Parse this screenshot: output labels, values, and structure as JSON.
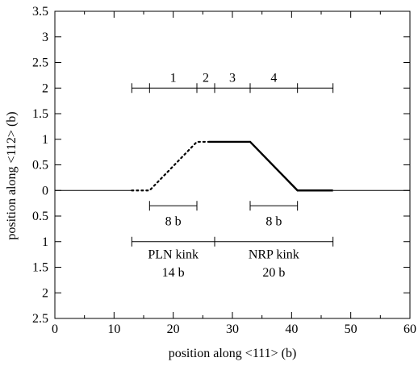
{
  "chart_data": {
    "type": "line",
    "xlabel": "position along <111> (b)",
    "ylabel": "position along <112> (b)",
    "xlim": [
      0,
      60
    ],
    "ylim": [
      -2.5,
      3.5
    ],
    "grid": false,
    "x_ticks": [
      {
        "v": 0,
        "label": "0"
      },
      {
        "v": 10,
        "label": "10"
      },
      {
        "v": 20,
        "label": "20"
      },
      {
        "v": 30,
        "label": "30"
      },
      {
        "v": 40,
        "label": "40"
      },
      {
        "v": 50,
        "label": "50"
      },
      {
        "v": 60,
        "label": "60"
      }
    ],
    "x_minor_step": 5,
    "y_ticks": [
      {
        "v": 3.5,
        "label": "3.5"
      },
      {
        "v": 3,
        "label": "3"
      },
      {
        "v": 2.5,
        "label": "2.5"
      },
      {
        "v": 2,
        "label": "2"
      },
      {
        "v": 1.5,
        "label": "1.5"
      },
      {
        "v": 1,
        "label": "1"
      },
      {
        "v": 0.5,
        "label": "0.5"
      },
      {
        "v": 0,
        "label": "0"
      },
      {
        "v": -0.5,
        "label": "0.5"
      },
      {
        "v": -1,
        "label": "1"
      },
      {
        "v": -1.5,
        "label": "1.5"
      },
      {
        "v": -2,
        "label": "2"
      },
      {
        "v": -2.5,
        "label": "2.5"
      }
    ],
    "series": [
      {
        "style": "solid-thin",
        "x": [
          0,
          13
        ],
        "y": [
          0,
          0
        ]
      },
      {
        "style": "dotted",
        "x": [
          13,
          16,
          24,
          26
        ],
        "y": [
          0,
          0,
          0.95,
          0.95
        ]
      },
      {
        "style": "solid-thick",
        "x": [
          26,
          33,
          41,
          47
        ],
        "y": [
          0.95,
          0.95,
          0,
          0
        ]
      },
      {
        "style": "solid-thin",
        "x": [
          47,
          60
        ],
        "y": [
          0,
          0
        ]
      }
    ],
    "segment_bars": [
      {
        "y": 2,
        "ticks": [
          13,
          16,
          24,
          27,
          33,
          41,
          47
        ]
      },
      {
        "y": -0.3,
        "ticks": [
          16,
          24
        ]
      },
      {
        "y": -0.3,
        "ticks": [
          33,
          41
        ]
      },
      {
        "y": -1,
        "ticks": [
          13,
          27,
          47
        ]
      }
    ],
    "annotations": [
      {
        "text": "1",
        "x": 20,
        "y": 2.2
      },
      {
        "text": "2",
        "x": 25.5,
        "y": 2.2
      },
      {
        "text": "3",
        "x": 30,
        "y": 2.2
      },
      {
        "text": "4",
        "x": 37,
        "y": 2.2
      },
      {
        "text": "8 b",
        "x": 20,
        "y": -0.6
      },
      {
        "text": "8 b",
        "x": 37,
        "y": -0.6
      },
      {
        "text": "PLN kink",
        "x": 20,
        "y": -1.25
      },
      {
        "text": "14 b",
        "x": 20,
        "y": -1.6
      },
      {
        "text": "NRP kink",
        "x": 37,
        "y": -1.25
      },
      {
        "text": "20 b",
        "x": 37,
        "y": -1.6
      }
    ]
  }
}
